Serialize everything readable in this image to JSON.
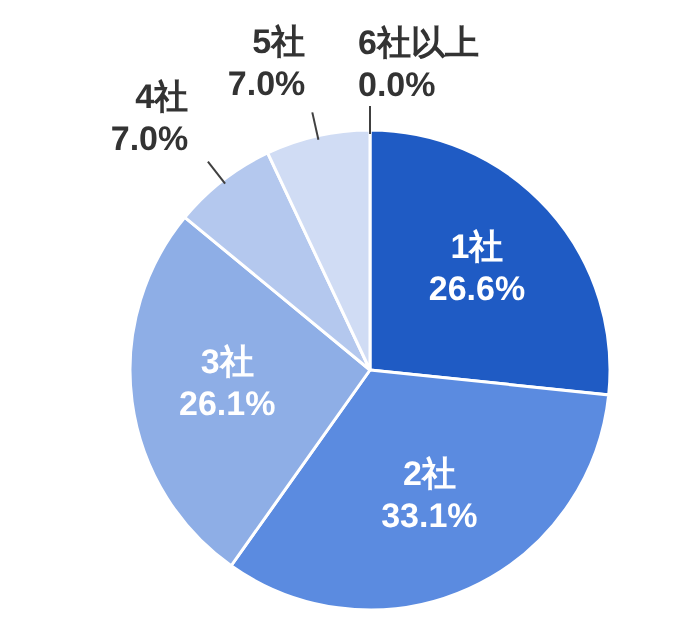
{
  "chart_data": {
    "type": "pie",
    "categories": [
      "1社",
      "2社",
      "3社",
      "4社",
      "5社",
      "6社以上"
    ],
    "values": [
      26.6,
      33.1,
      26.1,
      7.0,
      7.0,
      0.0
    ],
    "value_labels": [
      "26.6%",
      "33.1%",
      "26.1%",
      "7.0%",
      "7.0%",
      "0.0%"
    ],
    "colors": [
      "#1f5bc4",
      "#5b8be0",
      "#8eaee6",
      "#b4c8ee",
      "#d0dcf4",
      "#e8eefa"
    ]
  }
}
